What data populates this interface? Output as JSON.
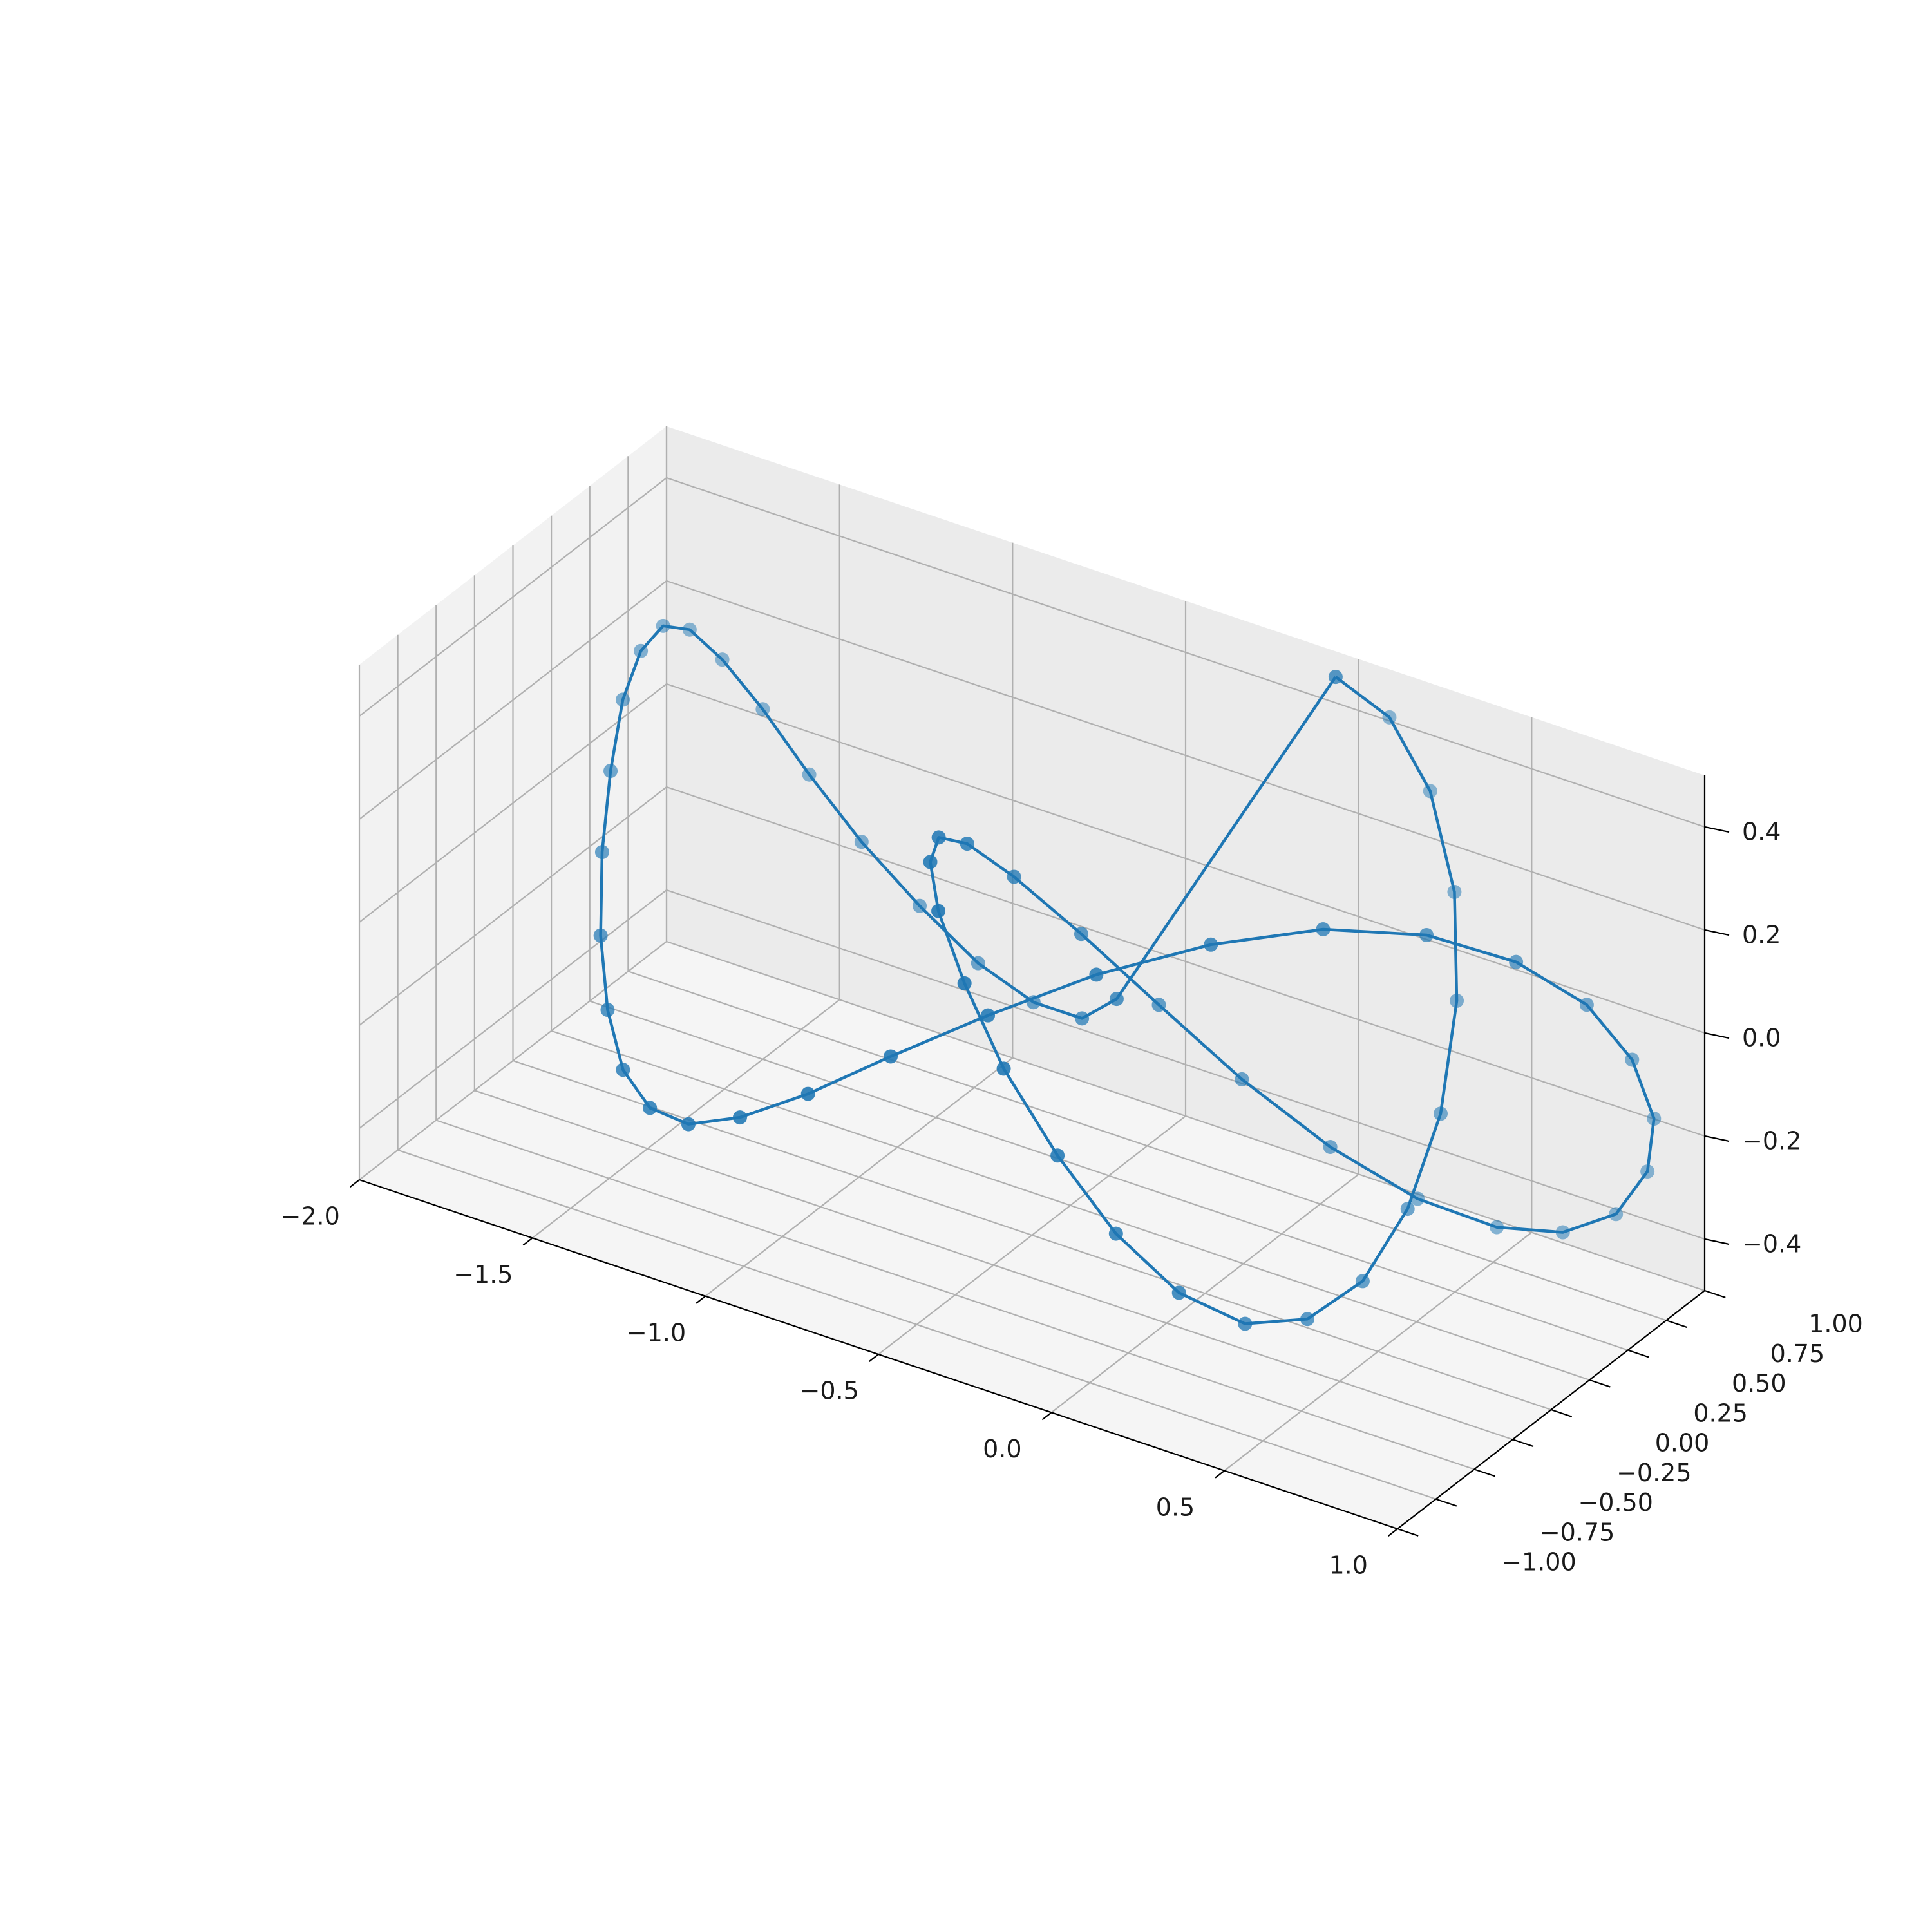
{
  "chart_data": {
    "type": "line3d",
    "projection": "3d",
    "title": "",
    "xlabel": "",
    "ylabel": "",
    "zlabel": "",
    "xlim": [
      -2.0,
      1.0
    ],
    "ylim": [
      -1.0,
      1.0
    ],
    "zlim": [
      -0.5,
      0.5
    ],
    "xticks": [
      -2.0,
      -1.5,
      -1.0,
      -0.5,
      0.0,
      0.5,
      1.0
    ],
    "xtick_labels": [
      "−2.0",
      "−1.5",
      "−1.0",
      "−0.5",
      "0.0",
      "0.5",
      "1.0"
    ],
    "yticks": [
      -1.0,
      -0.75,
      -0.5,
      -0.25,
      0.0,
      0.25,
      0.5,
      0.75,
      1.0
    ],
    "ytick_labels": [
      "−1.00",
      "−0.75",
      "−0.50",
      "−0.25",
      "0.00",
      "0.25",
      "0.50",
      "0.75",
      "1.00"
    ],
    "zticks": [
      -0.4,
      -0.2,
      0.0,
      0.2,
      0.4
    ],
    "ztick_labels": [
      "−0.4",
      "−0.2",
      "0.0",
      "0.2",
      "0.4"
    ],
    "grid": true,
    "legend": "none",
    "colors": {
      "series": "#1f77b4",
      "pane_x": "#f2f2f2",
      "pane_y": "#ebebeb",
      "pane_z": "#f5f5f5",
      "grid": "#b0b0b0",
      "axis": "#000000"
    },
    "series": [
      {
        "curve": "trefoil knot (parametric)",
        "x": [
          0.0,
          0.16,
          0.3,
          0.41,
          0.47,
          0.49,
          0.47,
          0.42,
          0.34,
          0.24,
          0.12,
          0.0,
          -0.12,
          -0.24,
          -0.34,
          -0.42,
          -0.47,
          -0.49,
          -0.47,
          -0.41,
          -0.3,
          -0.16,
          0.0,
          0.18,
          0.37,
          0.55,
          0.71,
          0.85,
          0.95,
          1.0,
          0.99,
          0.93,
          0.81,
          0.64,
          0.43,
          0.19,
          -0.07,
          -0.33,
          -0.58,
          -0.81,
          -1.02,
          -1.2,
          -1.36,
          -1.5,
          -1.62,
          -1.72,
          -1.8,
          -1.86,
          -1.9,
          -1.91,
          -1.89,
          -1.84,
          -1.75,
          -1.62,
          -1.45,
          -1.25,
          -1.02,
          -0.78,
          -0.54,
          -0.32,
          -0.14,
          0.0
        ],
        "y": [
          0.85,
          0.84,
          0.79,
          0.7,
          0.58,
          0.43,
          0.26,
          0.08,
          -0.1,
          -0.28,
          -0.44,
          -0.58,
          -0.69,
          -0.77,
          -0.8,
          -0.79,
          -0.73,
          -0.63,
          -0.49,
          -0.32,
          -0.13,
          0.06,
          0.24,
          0.41,
          0.55,
          0.66,
          0.73,
          0.76,
          0.74,
          0.67,
          0.55,
          0.39,
          0.2,
          0.0,
          -0.2,
          -0.39,
          -0.55,
          -0.67,
          -0.74,
          -0.76,
          -0.73,
          -0.66,
          -0.55,
          -0.41,
          -0.24,
          -0.06,
          0.13,
          0.32,
          0.49,
          0.63,
          0.73,
          0.79,
          0.8,
          0.77,
          0.69,
          0.58,
          0.44,
          0.28,
          0.1,
          -0.08,
          -0.26,
          0.85
        ],
        "z": [
          0.5,
          0.46,
          0.36,
          0.21,
          0.04,
          -0.14,
          -0.29,
          -0.4,
          -0.45,
          -0.44,
          -0.37,
          -0.25,
          -0.1,
          0.06,
          0.21,
          0.33,
          0.4,
          0.42,
          0.38,
          0.29,
          0.16,
          0.01,
          -0.14,
          -0.27,
          -0.36,
          -0.4,
          -0.39,
          -0.33,
          -0.22,
          -0.09,
          0.05,
          0.18,
          0.28,
          0.34,
          0.35,
          0.31,
          0.23,
          0.12,
          0.0,
          -0.12,
          -0.22,
          -0.29,
          -0.32,
          -0.31,
          -0.26,
          -0.18,
          -0.08,
          0.02,
          0.11,
          0.17,
          0.2,
          0.19,
          0.15,
          0.09,
          0.02,
          -0.04,
          -0.08,
          -0.1,
          -0.08,
          -0.02,
          0.1,
          0.5
        ]
      }
    ]
  }
}
